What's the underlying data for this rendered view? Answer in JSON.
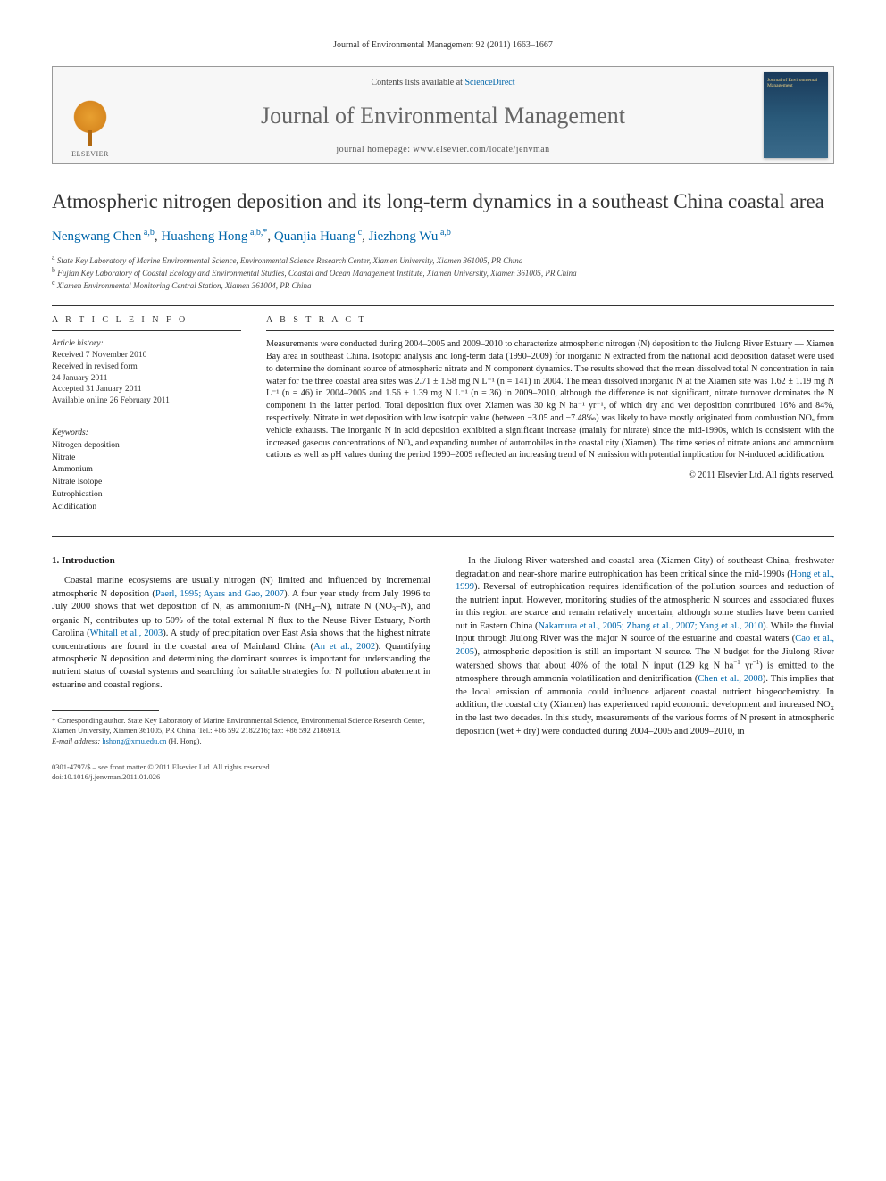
{
  "header_citation": "Journal of Environmental Management 92 (2011) 1663–1667",
  "masthead": {
    "contents_prefix": "Contents lists available at ",
    "contents_link": "ScienceDirect",
    "journal_name": "Journal of Environmental Management",
    "homepage_prefix": "journal homepage: ",
    "homepage_url": "www.elsevier.com/locate/jenvman",
    "publisher": "ELSEVIER",
    "cover_title": "Journal of Environmental Management"
  },
  "article": {
    "title": "Atmospheric nitrogen deposition and its long-term dynamics in a southeast China coastal area",
    "authors_html": "Nengwang Chen<sup>a,b</sup>, Huasheng Hong<sup>a,b,*</sup>, Quanjia Huang<sup>c</sup>, Jiezhong Wu<sup>a,b</sup>",
    "affiliations": {
      "a": "State Key Laboratory of Marine Environmental Science, Environmental Science Research Center, Xiamen University, Xiamen 361005, PR China",
      "b": "Fujian Key Laboratory of Coastal Ecology and Environmental Studies, Coastal and Ocean Management Institute, Xiamen University, Xiamen 361005, PR China",
      "c": "Xiamen Environmental Monitoring Central Station, Xiamen 361004, PR China"
    }
  },
  "info": {
    "label": "A R T I C L E   I N F O",
    "history_label": "Article history:",
    "received": "Received 7 November 2010",
    "revised": "Received in revised form",
    "revised_date": "24 January 2011",
    "accepted": "Accepted 31 January 2011",
    "online": "Available online 26 February 2011",
    "keywords_label": "Keywords:",
    "keywords": [
      "Nitrogen deposition",
      "Nitrate",
      "Ammonium",
      "Nitrate isotope",
      "Eutrophication",
      "Acidification"
    ]
  },
  "abstract": {
    "label": "A B S T R A C T",
    "text": "Measurements were conducted during 2004–2005 and 2009–2010 to characterize atmospheric nitrogen (N) deposition to the Jiulong River Estuary — Xiamen Bay area in southeast China. Isotopic analysis and long-term data (1990–2009) for inorganic N extracted from the national acid deposition dataset were used to determine the dominant source of atmospheric nitrate and N component dynamics. The results showed that the mean dissolved total N concentration in rain water for the three coastal area sites was 2.71 ± 1.58 mg N L⁻¹ (n = 141) in 2004. The mean dissolved inorganic N at the Xiamen site was 1.62 ± 1.19 mg N L⁻¹ (n = 46) in 2004–2005 and 1.56 ± 1.39 mg N L⁻¹ (n = 36) in 2009–2010, although the difference is not significant, nitrate turnover dominates the N component in the latter period. Total deposition flux over Xiamen was 30 kg N ha⁻¹ yr⁻¹, of which dry and wet deposition contributed 16% and 84%, respectively. Nitrate in wet deposition with low isotopic value (between −3.05 and −7.48‰) was likely to have mostly originated from combustion NOₓ from vehicle exhausts. The inorganic N in acid deposition exhibited a significant increase (mainly for nitrate) since the mid-1990s, which is consistent with the increased gaseous concentrations of NOₓ and expanding number of automobiles in the coastal city (Xiamen). The time series of nitrate anions and ammonium cations as well as pH values during the period 1990–2009 reflected an increasing trend of N emission with potential implication for N-induced acidification.",
    "copyright": "© 2011 Elsevier Ltd. All rights reserved."
  },
  "body": {
    "section1_heading": "1. Introduction",
    "col1_p1": "Coastal marine ecosystems are usually nitrogen (N) limited and influenced by incremental atmospheric N deposition (Paerl, 1995; Ayars and Gao, 2007). A four year study from July 1996 to July 2000 shows that wet deposition of N, as ammonium-N (NH₄–N), nitrate N (NO₃–N), and organic N, contributes up to 50% of the total external N flux to the Neuse River Estuary, North Carolina (Whitall et al., 2003). A study of precipitation over East Asia shows that the highest nitrate concentrations are found in the coastal area of Mainland China (An et al., 2002). Quantifying atmospheric N deposition and determining the dominant sources is important for understanding the nutrient status of coastal systems and searching for suitable strategies for N pollution abatement in estuarine and coastal regions.",
    "col2_p1": "In the Jiulong River watershed and coastal area (Xiamen City) of southeast China, freshwater degradation and near-shore marine eutrophication has been critical since the mid-1990s (Hong et al., 1999). Reversal of eutrophication requires identification of the pollution sources and reduction of the nutrient input. However, monitoring studies of the atmospheric N sources and associated fluxes in this region are scarce and remain relatively uncertain, although some studies have been carried out in Eastern China (Nakamura et al., 2005; Zhang et al., 2007; Yang et al., 2010). While the fluvial input through Jiulong River was the major N source of the estuarine and coastal waters (Cao et al., 2005), atmospheric deposition is still an important N source. The N budget for the Jiulong River watershed shows that about 40% of the total N input (129 kg N ha⁻¹ yr⁻¹) is emitted to the atmosphere through ammonia volatilization and denitrification (Chen et al., 2008). This implies that the local emission of ammonia could influence adjacent coastal nutrient biogeochemistry. In addition, the coastal city (Xiamen) has experienced rapid economic development and increased NOₓ in the last two decades. In this study, measurements of the various forms of N present in atmospheric deposition (wet + dry) were conducted during 2004–2005 and 2009–2010, in"
  },
  "footnote": {
    "corr": "* Corresponding author. State Key Laboratory of Marine Environmental Science, Environmental Science Research Center, Xiamen University, Xiamen 361005, PR China. Tel.: +86 592 2182216; fax: +86 592 2186913.",
    "email_label": "E-mail address: ",
    "email": "hshong@xmu.edu.cn",
    "email_suffix": " (H. Hong)."
  },
  "footer": {
    "line1": "0301-4797/$ – see front matter © 2011 Elsevier Ltd. All rights reserved.",
    "line2": "doi:10.1016/j.jenvman.2011.01.026"
  },
  "refs": {
    "paerl": "Paerl, 1995; Ayars and Gao, 2007",
    "whitall": "Whitall et al., 2003",
    "an": "An et al., 2002",
    "hong": "Hong et al., 1999",
    "nakamura": "Nakamura et al., 2005; Zhang et al., 2007; Yang et al., 2010",
    "cao": "Cao et al., 2005",
    "chen": "Chen et al., 2008"
  }
}
